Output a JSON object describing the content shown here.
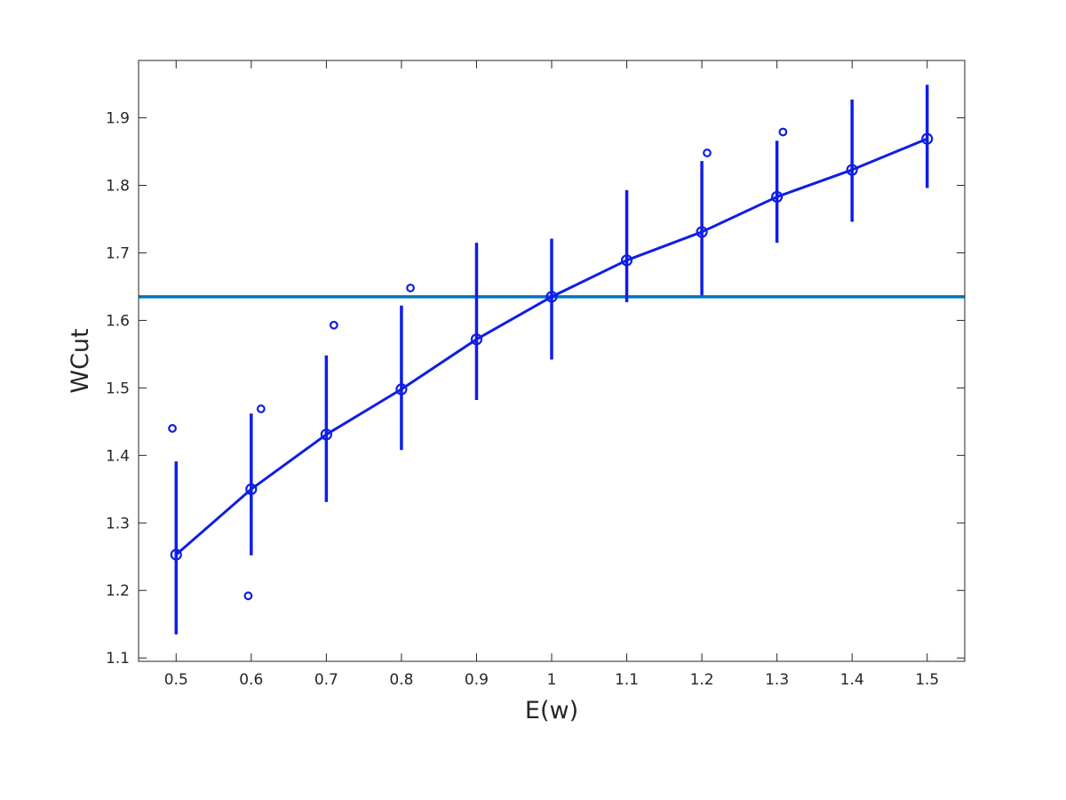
{
  "chart_data": {
    "type": "line",
    "title": "",
    "xlabel": "E(w)",
    "ylabel": "WCut",
    "xlim": [
      0.45,
      1.55
    ],
    "ylim": [
      1.095,
      1.985
    ],
    "grid": false,
    "xticks": [
      0.5,
      0.6,
      0.7,
      0.8,
      0.9,
      1.0,
      1.1,
      1.2,
      1.3,
      1.4,
      1.5
    ],
    "xtick_labels": [
      "0.5",
      "0.6",
      "0.7",
      "0.8",
      "0.9",
      "1",
      "1.1",
      "1.2",
      "1.3",
      "1.4",
      "1.5"
    ],
    "yticks": [
      1.1,
      1.2,
      1.3,
      1.4,
      1.5,
      1.6,
      1.7,
      1.8,
      1.9
    ],
    "ytick_labels": [
      "1.1",
      "1.2",
      "1.3",
      "1.4",
      "1.5",
      "1.6",
      "1.7",
      "1.8",
      "1.9"
    ],
    "series": [
      {
        "x": [
          0.5,
          0.6,
          0.7,
          0.8,
          0.9,
          1.0,
          1.1,
          1.2,
          1.3,
          1.4,
          1.5
        ],
        "y": [
          1.253,
          1.35,
          1.431,
          1.498,
          1.572,
          1.635,
          1.689,
          1.731,
          1.783,
          1.823,
          1.869
        ],
        "lower": [
          1.135,
          1.252,
          1.331,
          1.408,
          1.482,
          1.542,
          1.627,
          1.637,
          1.715,
          1.746,
          1.796
        ],
        "upper": [
          1.391,
          1.462,
          1.548,
          1.622,
          1.715,
          1.721,
          1.793,
          1.836,
          1.866,
          1.927,
          1.949
        ],
        "color": "#0f1ee6"
      }
    ],
    "outliers": [
      {
        "x": 0.495,
        "y": 1.44
      },
      {
        "x": 0.596,
        "y": 1.192
      },
      {
        "x": 0.613,
        "y": 1.469
      },
      {
        "x": 0.71,
        "y": 1.593
      },
      {
        "x": 0.812,
        "y": 1.648
      },
      {
        "x": 1.207,
        "y": 1.848
      },
      {
        "x": 1.308,
        "y": 1.879
      }
    ],
    "reference_line": {
      "y": 1.635,
      "color": "#0072bd"
    }
  }
}
